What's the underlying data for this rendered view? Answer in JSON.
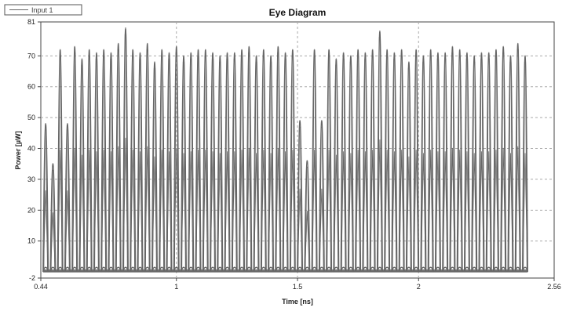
{
  "chart_data": {
    "type": "line",
    "title": "Eye Diagram",
    "xlabel": "Time [ns]",
    "ylabel": "Power [µW]",
    "xlim": [
      0.44,
      2.56
    ],
    "ylim": [
      -2,
      81
    ],
    "x_ticks": [
      "0.44",
      "1",
      "1.5",
      "2",
      "2.56"
    ],
    "x_tick_values": [
      0.44,
      1,
      1.5,
      2,
      2.56
    ],
    "y_ticks": [
      "-2",
      "10",
      "20",
      "30",
      "40",
      "50",
      "60",
      "70",
      "81"
    ],
    "y_tick_values": [
      -2,
      10,
      20,
      30,
      40,
      50,
      60,
      70,
      81
    ],
    "grid": true,
    "legend_position": "top-left",
    "baseline": 0,
    "series": [
      {
        "name": "Input 1",
        "color": "#666666",
        "pulse_times_ns": [
          0.46,
          0.49,
          0.52,
          0.55,
          0.58,
          0.61,
          0.64,
          0.67,
          0.7,
          0.73,
          0.76,
          0.79,
          0.82,
          0.85,
          0.88,
          0.91,
          0.94,
          0.97,
          1.0,
          1.03,
          1.06,
          1.09,
          1.12,
          1.15,
          1.18,
          1.21,
          1.24,
          1.27,
          1.3,
          1.33,
          1.36,
          1.39,
          1.42,
          1.45,
          1.48,
          1.51,
          1.54,
          1.57,
          1.6,
          1.63,
          1.66,
          1.69,
          1.72,
          1.75,
          1.78,
          1.81,
          1.84,
          1.87,
          1.9,
          1.93,
          1.96,
          1.99,
          2.02,
          2.05,
          2.08,
          2.11,
          2.14,
          2.17,
          2.2,
          2.23,
          2.26,
          2.29,
          2.32,
          2.35,
          2.38,
          2.41,
          2.44
        ],
        "pulse_peaks_uW": [
          48,
          35,
          72,
          48,
          73,
          69,
          72,
          71,
          72,
          71,
          74,
          79,
          72,
          71,
          74,
          68,
          72,
          71,
          73,
          70,
          71,
          72,
          72,
          71,
          70,
          71,
          71,
          72,
          73,
          70,
          72,
          70,
          73,
          71,
          72,
          49,
          36,
          72,
          49,
          72,
          69,
          71,
          70,
          72,
          71,
          72,
          78,
          72,
          71,
          72,
          68,
          72,
          70,
          72,
          71,
          71,
          73,
          72,
          71,
          70,
          71,
          71,
          72,
          73,
          70,
          74,
          70
        ]
      }
    ]
  }
}
